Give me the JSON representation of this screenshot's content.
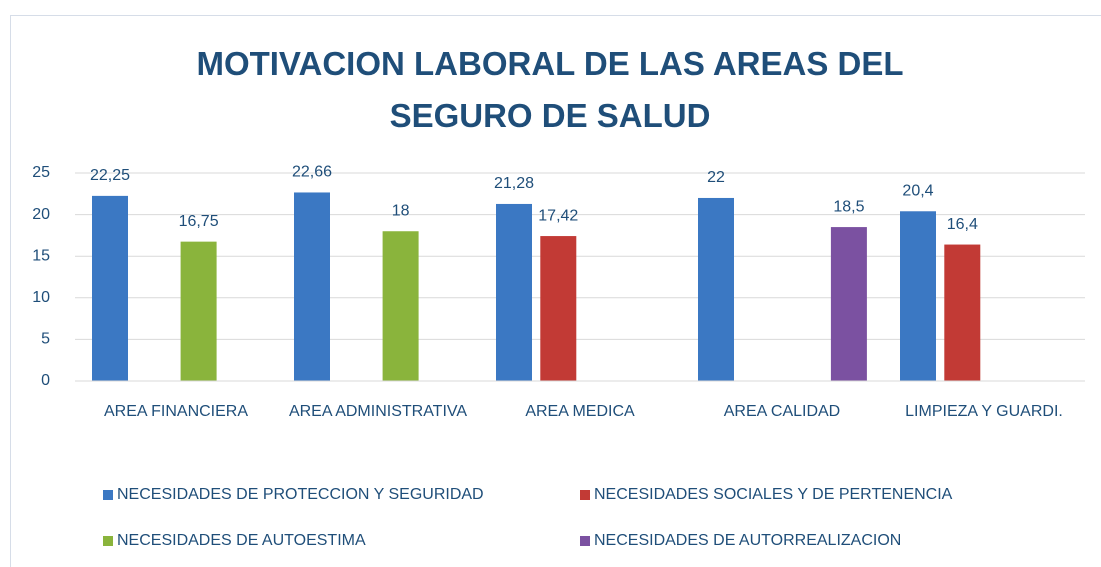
{
  "chart_data": {
    "type": "bar",
    "title": "MOTIVACION LABORAL DE LAS AREAS DEL SEGURO DE SALUD",
    "categories": [
      "AREA FINANCIERA",
      "AREA ADMINISTRATIVA",
      "AREA MEDICA",
      "AREA CALIDAD",
      "LIMPIEZA Y GUARDI."
    ],
    "series": [
      {
        "name": "NECESIDADES DE PROTECCION Y SEGURIDAD",
        "color": "#3b78c3",
        "values": [
          22.25,
          22.66,
          21.28,
          22,
          20.4
        ],
        "value_labels": [
          "22,25",
          "22,66",
          "21,28",
          "22",
          "20,4"
        ]
      },
      {
        "name": "NECESIDADES SOCIALES Y DE PERTENENCIA",
        "color": "#c23a35",
        "values": [
          null,
          null,
          17.42,
          null,
          16.4
        ],
        "value_labels": [
          null,
          null,
          "17,42",
          null,
          "16,4"
        ]
      },
      {
        "name": "NECESIDADES DE AUTOESTIMA",
        "color": "#8ab43c",
        "values": [
          16.75,
          18,
          null,
          null,
          null
        ],
        "value_labels": [
          "16,75",
          "18",
          null,
          null,
          null
        ]
      },
      {
        "name": "NECESIDADES DE AUTORREALIZACION",
        "color": "#7b51a1",
        "values": [
          null,
          null,
          null,
          18.5,
          null
        ],
        "value_labels": [
          null,
          null,
          null,
          "18,5",
          null
        ]
      }
    ],
    "ylim": [
      0,
      25
    ],
    "yticks": [
      0,
      5,
      10,
      15,
      20,
      25
    ],
    "grid": true,
    "legend": "bottom"
  }
}
